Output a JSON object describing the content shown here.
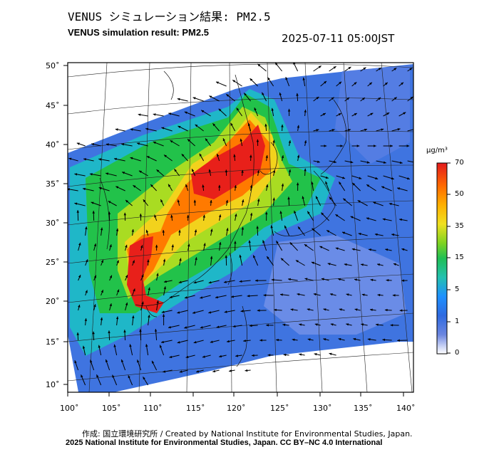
{
  "header": {
    "title_ja": "VENUS シミュレーション結果: PM2.5",
    "title_en": "VENUS simulation result: PM2.5",
    "timestamp": "2025-07-11 05:00JST"
  },
  "axes": {
    "lon_labels": [
      "100˚",
      "105˚",
      "110˚",
      "115˚",
      "120˚",
      "125˚",
      "130˚",
      "135˚",
      "140˚"
    ],
    "lat_labels": [
      "50˚",
      "45˚",
      "40˚",
      "35˚",
      "30˚",
      "25˚",
      "20˚",
      "15˚",
      "10˚"
    ]
  },
  "colorbar": {
    "unit": "μg/m³",
    "labels": [
      "70",
      "50",
      "35",
      "15",
      "5",
      "1",
      "0"
    ],
    "colors": [
      "#e31a1c",
      "#ff6a00",
      "#ffb000",
      "#f0e020",
      "#7ed321",
      "#1fbf55",
      "#23c0b0",
      "#1e90ff",
      "#2f6ae0",
      "#5a7dd8",
      "#a6b8f0",
      "#ffffff"
    ]
  },
  "credits": {
    "line1": "作成: 国立環境研究所 / Created by National Institute for Environmental Studies, Japan.",
    "line2": "2025 National Institute for Environmental Studies, Japan. CC BY–NC 4.0 International"
  }
}
